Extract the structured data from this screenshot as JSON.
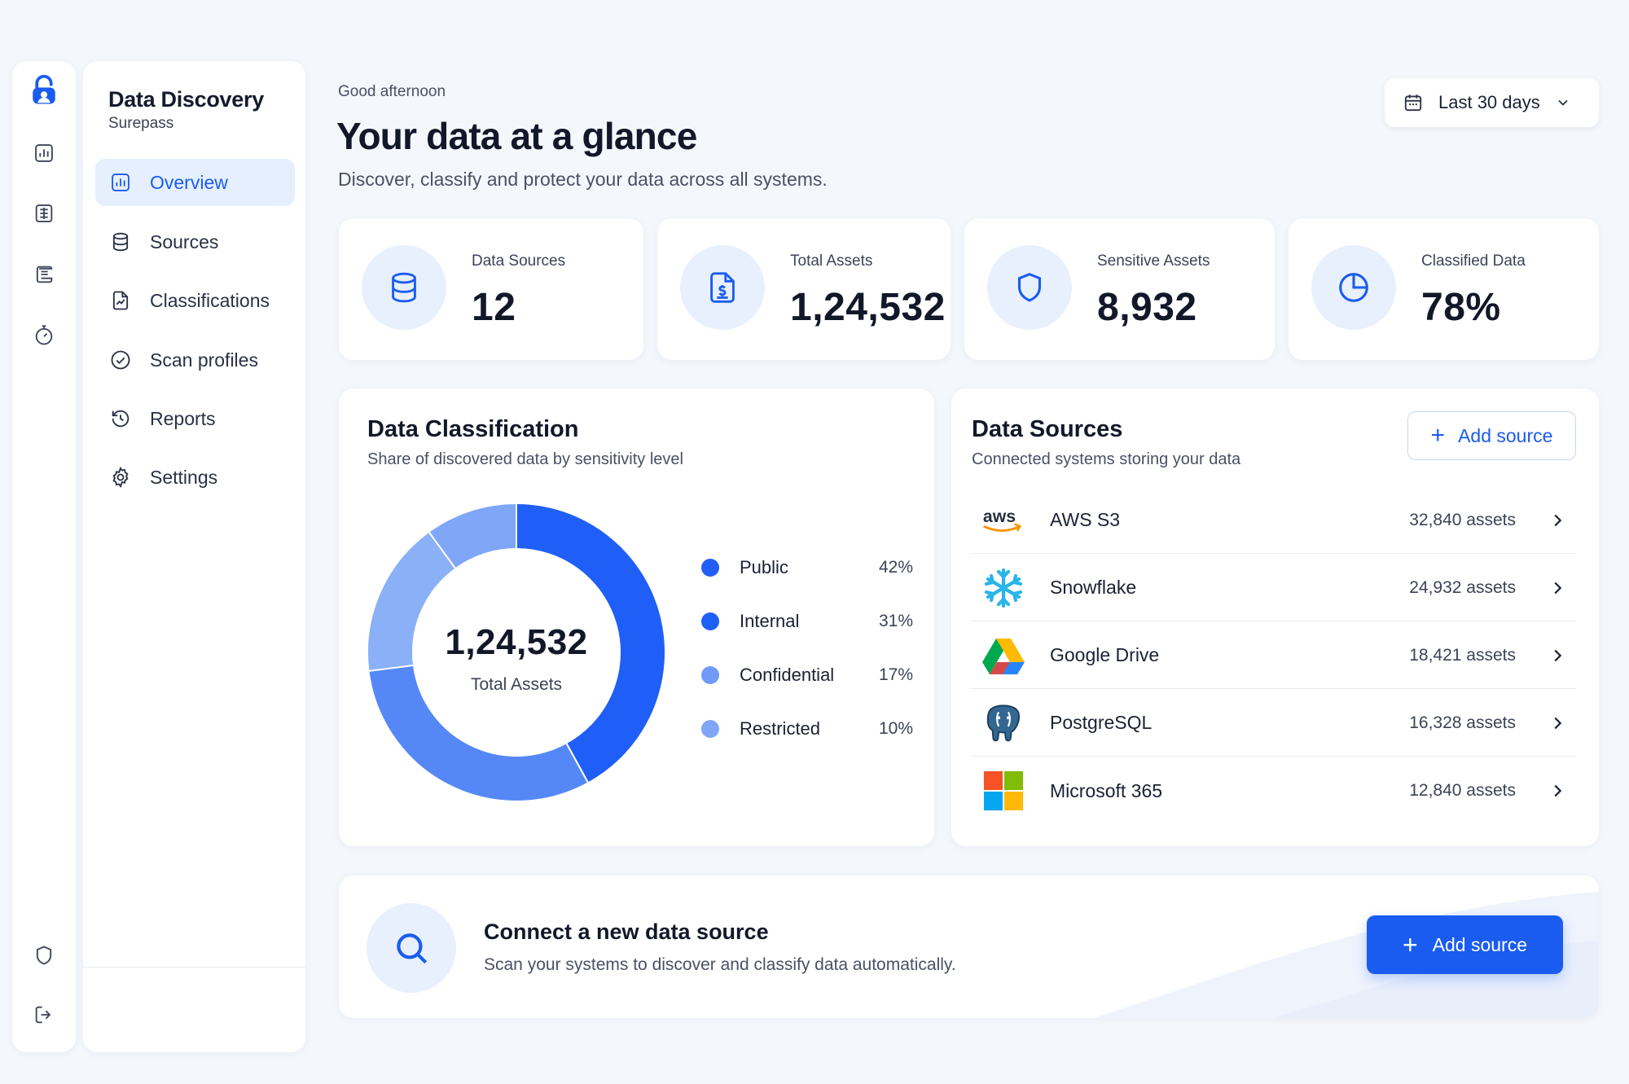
{
  "sidebar": {
    "brand_title": "Data Discovery",
    "brand_subtitle": "Surepass",
    "items": [
      {
        "label": "Overview",
        "icon": "bar-chart-icon",
        "active": true
      },
      {
        "label": "Sources",
        "icon": "database-icon"
      },
      {
        "label": "Classifications",
        "icon": "file-chart-icon"
      },
      {
        "label": "Scan profiles",
        "icon": "check-circle-icon"
      },
      {
        "label": "Reports",
        "icon": "history-icon"
      },
      {
        "label": "Settings",
        "icon": "gear-icon"
      }
    ]
  },
  "rail": {
    "icons": [
      "lock-icon",
      "bar-chart-icon",
      "list-icon",
      "scroll-icon",
      "timer-icon",
      "shield-icon",
      "logout-icon"
    ]
  },
  "header": {
    "greeting": "Good afternoon",
    "title": "Your data at a glance",
    "subtitle": "Discover, classify and protect your data across all systems.",
    "date_range": "Last 30 days"
  },
  "stats": [
    {
      "label": "Data Sources",
      "value": "12",
      "icon": "database-icon"
    },
    {
      "label": "Total Assets",
      "value": "1,24,532",
      "icon": "file-dollar-icon"
    },
    {
      "label": "Sensitive Assets",
      "value": "8,932",
      "icon": "shield-icon"
    },
    {
      "label": "Classified Data",
      "value": "78%",
      "icon": "pie-chart-icon"
    }
  ],
  "classification": {
    "title": "Data Classification",
    "subtitle": "Share of discovered data by sensitivity level",
    "center_value": "1,24,532",
    "center_label": "Total Assets"
  },
  "chart_data": {
    "type": "pie",
    "categories": [
      "Public",
      "Internal",
      "Confidential",
      "Restricted"
    ],
    "values": [
      42,
      31,
      17,
      10
    ],
    "labels": [
      "42%",
      "31%",
      "17%",
      "10%"
    ],
    "colors": [
      "#1f5ff7",
      "#5588f6",
      "#8ab0f8",
      "#7fa6f7"
    ],
    "donut": true
  },
  "sources": {
    "title": "Data Sources",
    "subtitle": "Connected systems storing your data",
    "add_label": "Add source",
    "items": [
      {
        "name": "AWS S3",
        "count": "32,840 assets",
        "logo": "aws-logo"
      },
      {
        "name": "Snowflake",
        "count": "24,932 assets",
        "logo": "snowflake-logo"
      },
      {
        "name": "Google Drive",
        "count": "18,421 assets",
        "logo": "google-drive-logo"
      },
      {
        "name": "PostgreSQL",
        "count": "16,328 assets",
        "logo": "postgresql-logo"
      },
      {
        "name": "Microsoft 365",
        "count": "12,840 assets",
        "logo": "microsoft-365-logo"
      }
    ]
  },
  "banner": {
    "title": "Connect a new data source",
    "subtitle": "Scan your systems to discover and classify data automatically.",
    "button_label": "Add source"
  },
  "colors": {
    "accent": "#1a5cf0",
    "background": "#f4f7fc",
    "icon_bg": "#e8f0fd"
  }
}
